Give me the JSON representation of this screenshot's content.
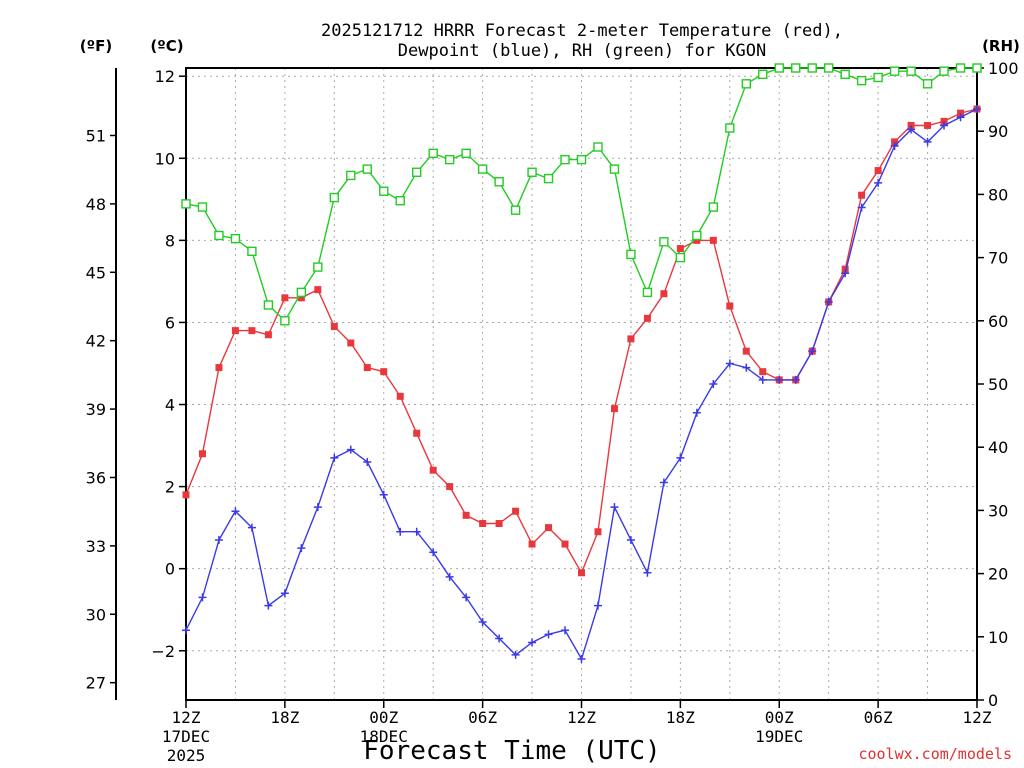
{
  "chart_data": {
    "type": "line",
    "title_line1": "2025121712 HRRR Forecast 2-meter Temperature (red),",
    "title_line2": "Dewpoint (blue), RH (green) for KGON",
    "xlabel": "Forecast Time (UTC)",
    "unit_left_f": "(ºF)",
    "unit_left_c": "(ºC)",
    "unit_right": "(RH)",
    "credit": "coolwx.com/models",
    "grid": true,
    "x_range_hours": [
      0,
      48
    ],
    "y_left_c": {
      "range": [
        -3.2,
        12.2
      ],
      "ticks": [
        -2,
        0,
        2,
        4,
        6,
        8,
        10,
        12
      ]
    },
    "y_left_f": {
      "ticks": [
        27,
        30,
        33,
        36,
        39,
        42,
        45,
        48,
        51
      ]
    },
    "y_right_rh": {
      "range": [
        0,
        100
      ],
      "ticks": [
        0,
        10,
        20,
        30,
        40,
        50,
        60,
        70,
        80,
        90,
        100
      ]
    },
    "x_ticks": [
      {
        "hour": 0,
        "label": "12Z",
        "label2": "17DEC",
        "label3": "2025"
      },
      {
        "hour": 6,
        "label": "18Z"
      },
      {
        "hour": 12,
        "label": "00Z",
        "label2": "18DEC"
      },
      {
        "hour": 18,
        "label": "06Z"
      },
      {
        "hour": 24,
        "label": "12Z"
      },
      {
        "hour": 30,
        "label": "18Z"
      },
      {
        "hour": 36,
        "label": "00Z",
        "label2": "19DEC"
      },
      {
        "hour": 42,
        "label": "06Z"
      },
      {
        "hour": 48,
        "label": "12Z"
      }
    ],
    "series": [
      {
        "key": "temperature",
        "axis": "C",
        "color": "#e8383d",
        "marker": "filled-square",
        "values": [
          1.8,
          2.8,
          4.9,
          5.8,
          5.8,
          5.7,
          6.6,
          6.6,
          6.8,
          5.9,
          5.5,
          4.9,
          4.8,
          4.2,
          3.3,
          2.4,
          2.0,
          1.3,
          1.1,
          1.1,
          1.4,
          0.6,
          1.0,
          0.6,
          -0.1,
          0.9,
          3.9,
          5.6,
          6.1,
          6.7,
          7.8,
          8.0,
          8.0,
          6.4,
          5.3,
          4.8,
          4.6,
          4.6,
          5.3,
          6.5,
          7.3,
          9.1,
          9.7,
          10.4,
          10.8,
          10.8,
          10.9,
          11.1,
          11.2
        ]
      },
      {
        "key": "dewpoint",
        "axis": "C",
        "color": "#3a3ae8",
        "marker": "plus",
        "values": [
          -1.5,
          -0.7,
          0.7,
          1.4,
          1.0,
          -0.9,
          -0.6,
          0.5,
          1.5,
          2.7,
          2.9,
          2.6,
          1.8,
          0.9,
          0.9,
          0.4,
          -0.2,
          -0.7,
          -1.3,
          -1.7,
          -2.1,
          -1.8,
          -1.6,
          -1.5,
          -2.2,
          -0.9,
          1.5,
          0.7,
          -0.1,
          2.1,
          2.7,
          3.8,
          4.5,
          5.0,
          4.9,
          4.6,
          4.6,
          4.6,
          5.3,
          6.5,
          7.2,
          8.8,
          9.4,
          10.3,
          10.7,
          10.4,
          10.8,
          11.0,
          11.2
        ]
      },
      {
        "key": "rh",
        "axis": "RH",
        "color": "#22cc22",
        "marker": "open-square",
        "values": [
          78.5,
          78.0,
          73.5,
          73.0,
          71.0,
          62.5,
          60.0,
          64.5,
          68.5,
          79.5,
          83.0,
          84.0,
          80.5,
          79.0,
          83.5,
          86.5,
          85.5,
          86.5,
          84.0,
          82.0,
          77.5,
          83.5,
          82.5,
          85.5,
          85.5,
          87.5,
          84.0,
          70.5,
          64.5,
          72.5,
          70.0,
          73.5,
          78.0,
          90.5,
          97.5,
          99.0,
          100.0,
          100.0,
          100.0,
          100.0,
          99.0,
          98.0,
          98.5,
          99.5,
          99.5,
          97.5,
          99.5,
          100.0,
          100.0
        ]
      }
    ]
  }
}
